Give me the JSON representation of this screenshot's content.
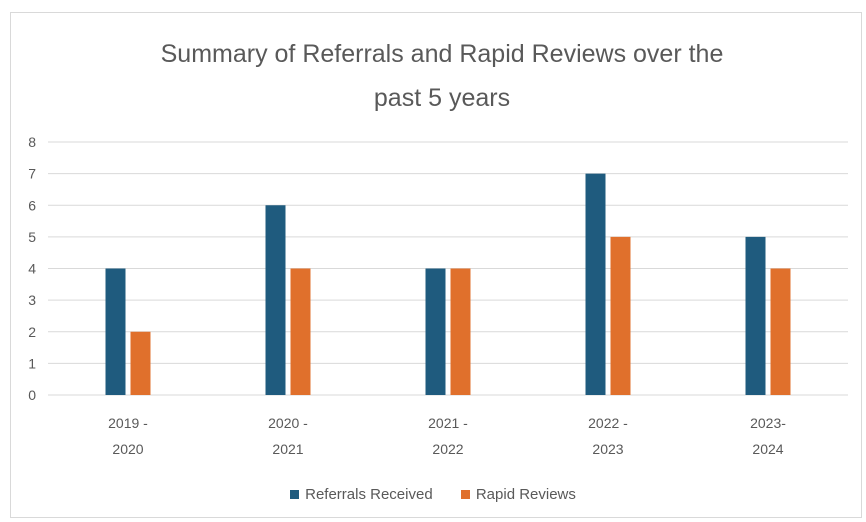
{
  "chart_data": {
    "type": "bar",
    "title_lines": [
      "Summary of Referrals and Rapid Reviews over the",
      "past 5 years"
    ],
    "categories": [
      [
        "2019 -",
        "2020"
      ],
      [
        "2020 -",
        "2021"
      ],
      [
        "2021 -",
        "2022"
      ],
      [
        "2022 -",
        "2023"
      ],
      [
        "2023-",
        "2024"
      ]
    ],
    "series": [
      {
        "name": "Referrals Received",
        "color": "#1f5b7e",
        "values": [
          4,
          6,
          4,
          7,
          5
        ]
      },
      {
        "name": "Rapid Reviews",
        "color": "#e0702c",
        "values": [
          2,
          4,
          4,
          5,
          4
        ]
      }
    ],
    "ylim": [
      0,
      8
    ],
    "yticks": [
      "0",
      "1",
      "2",
      "3",
      "4",
      "5",
      "6",
      "7",
      "8"
    ],
    "grid": true,
    "legend_position": "bottom"
  }
}
